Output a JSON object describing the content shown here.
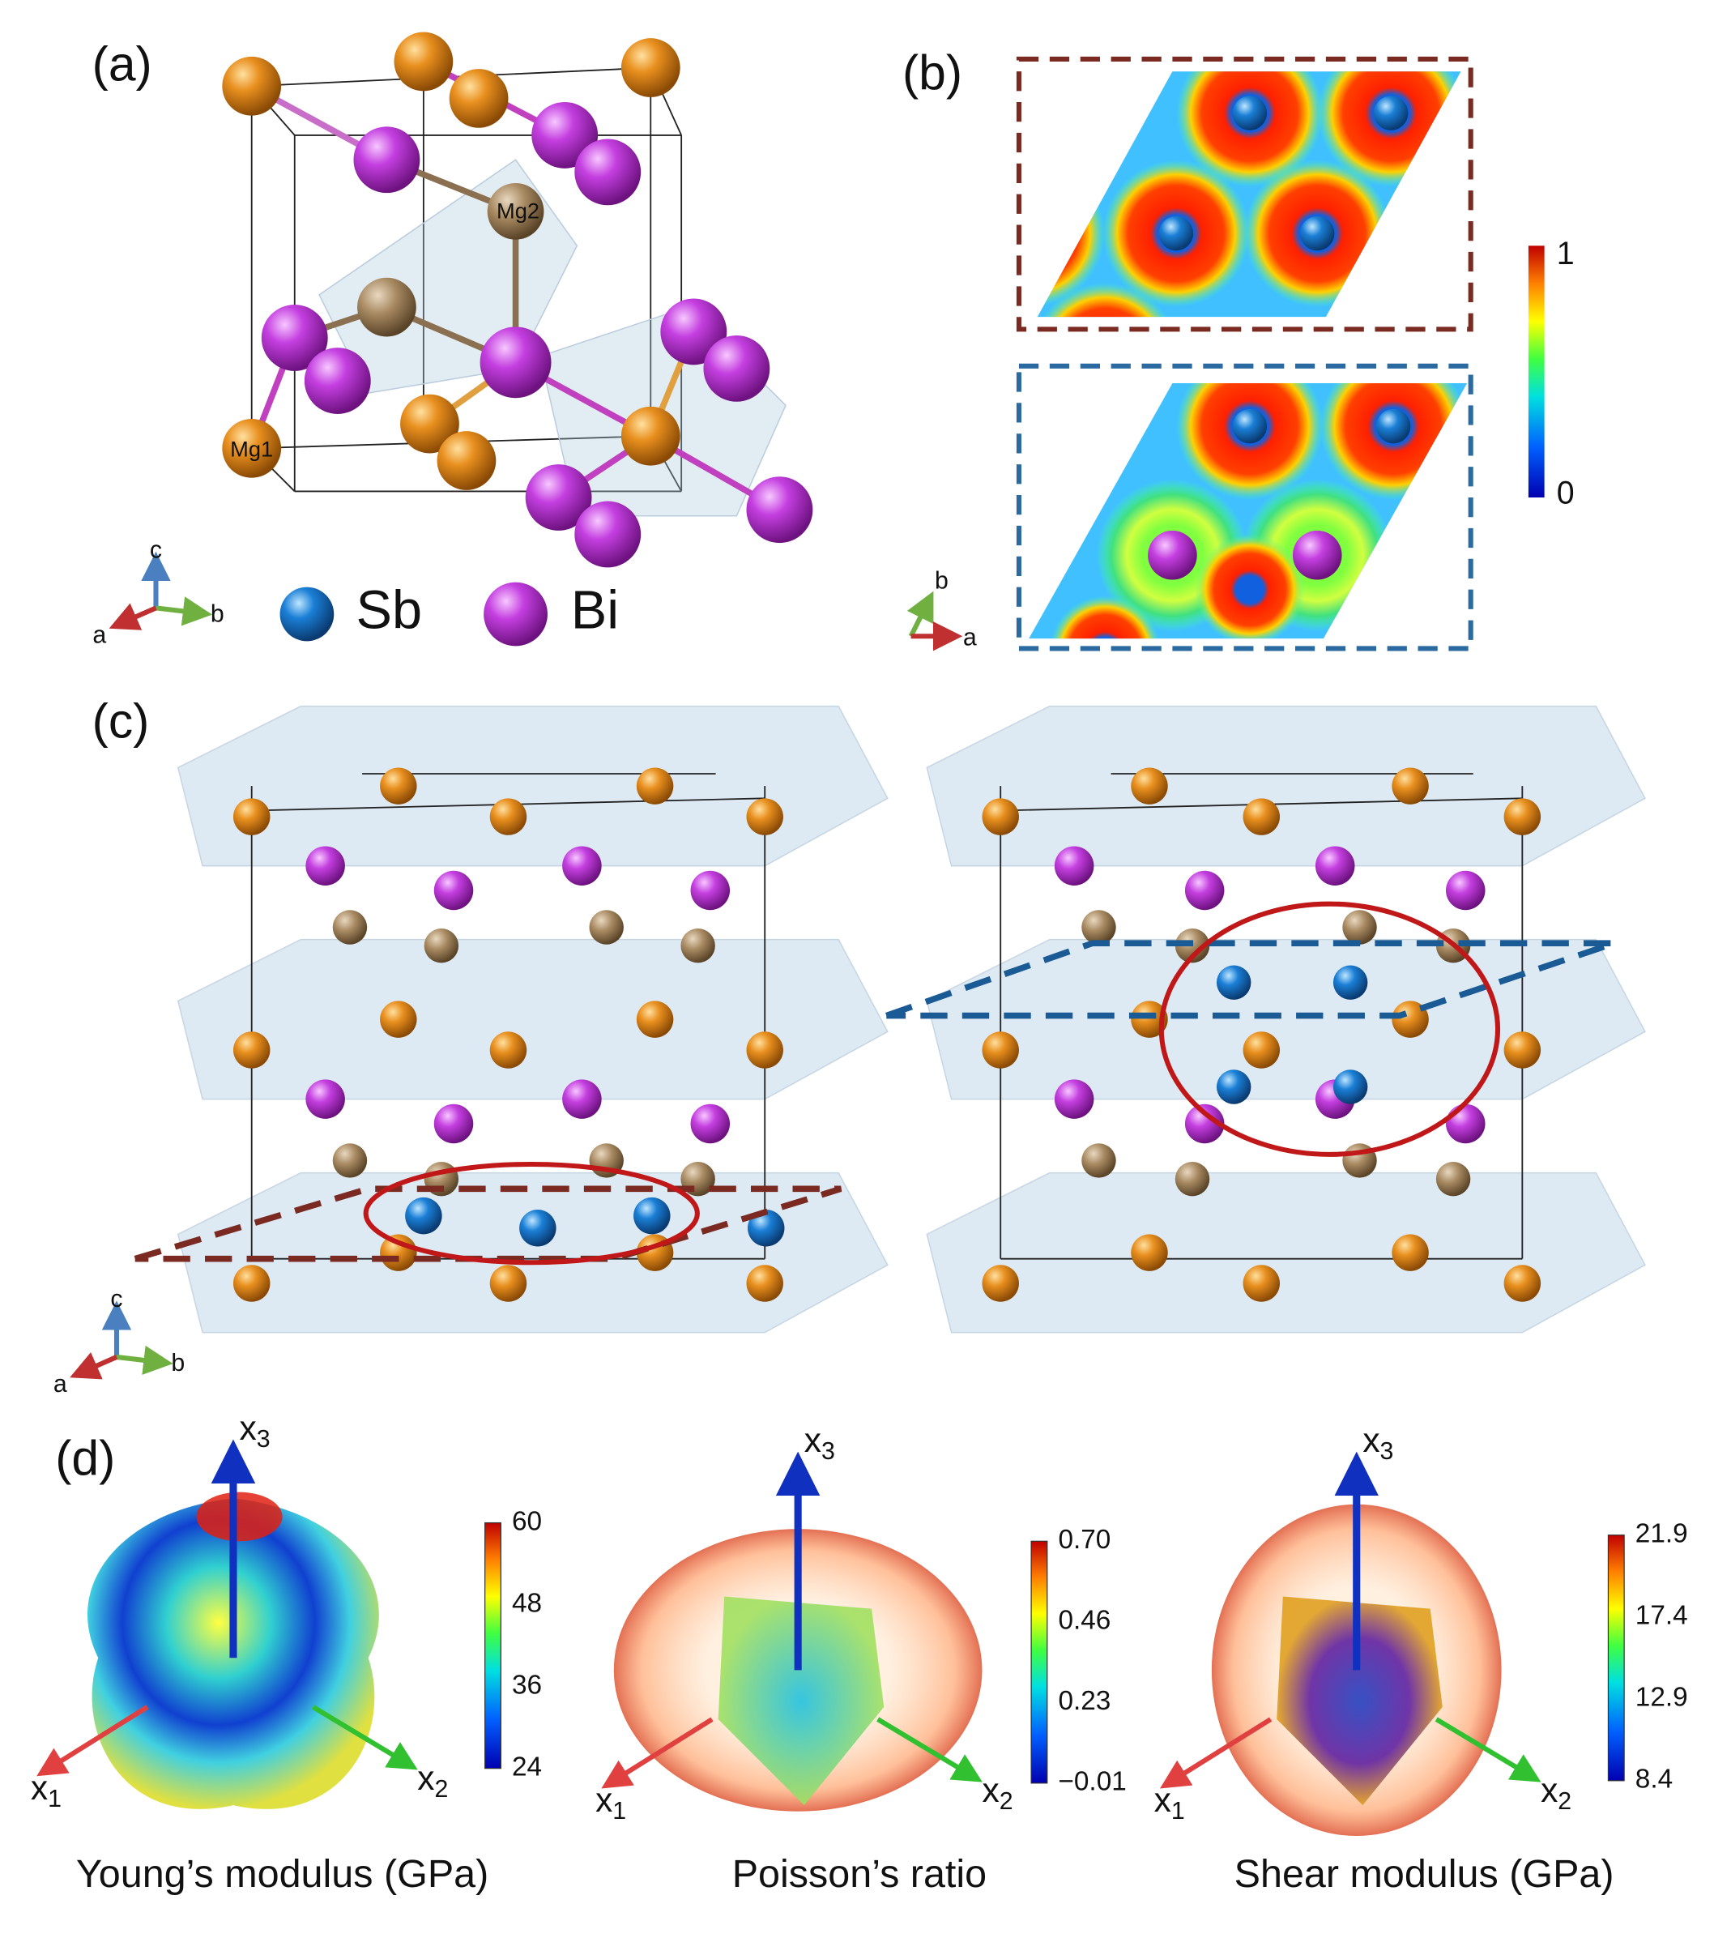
{
  "panel_a": {
    "label": "(a)",
    "atom_labels": [
      "Mg2",
      "Mg1"
    ],
    "axes": [
      "c",
      "a",
      "b"
    ],
    "legend": [
      "Sb",
      "Bi"
    ]
  },
  "panel_b": {
    "label": "(b)",
    "colorbar": [
      "1",
      "0"
    ],
    "axes": [
      "b",
      "a"
    ]
  },
  "panel_c": {
    "label": "(c)",
    "axes": [
      "c",
      "a",
      "b"
    ]
  },
  "panel_d": {
    "label": "(d)",
    "plots": [
      {
        "caption": "Young’s modulus (GPa)",
        "colorbar": [
          "60",
          "48",
          "36",
          "24"
        ],
        "axes": [
          {
            "main": "x",
            "sub": "3"
          },
          {
            "main": "x",
            "sub": "1"
          },
          {
            "main": "x",
            "sub": "2"
          }
        ]
      },
      {
        "caption": "Poisson’s ratio",
        "colorbar": [
          "0.70",
          "0.46",
          "0.23",
          "−0.01"
        ],
        "axes": [
          {
            "main": "x",
            "sub": "3"
          },
          {
            "main": "x",
            "sub": "1"
          },
          {
            "main": "x",
            "sub": "2"
          }
        ]
      },
      {
        "caption": "Shear modulus (GPa)",
        "colorbar": [
          "21.9",
          "17.4",
          "12.9",
          "8.4"
        ],
        "axes": [
          {
            "main": "x",
            "sub": "3"
          },
          {
            "main": "x",
            "sub": "1"
          },
          {
            "main": "x",
            "sub": "2"
          }
        ]
      }
    ]
  }
}
